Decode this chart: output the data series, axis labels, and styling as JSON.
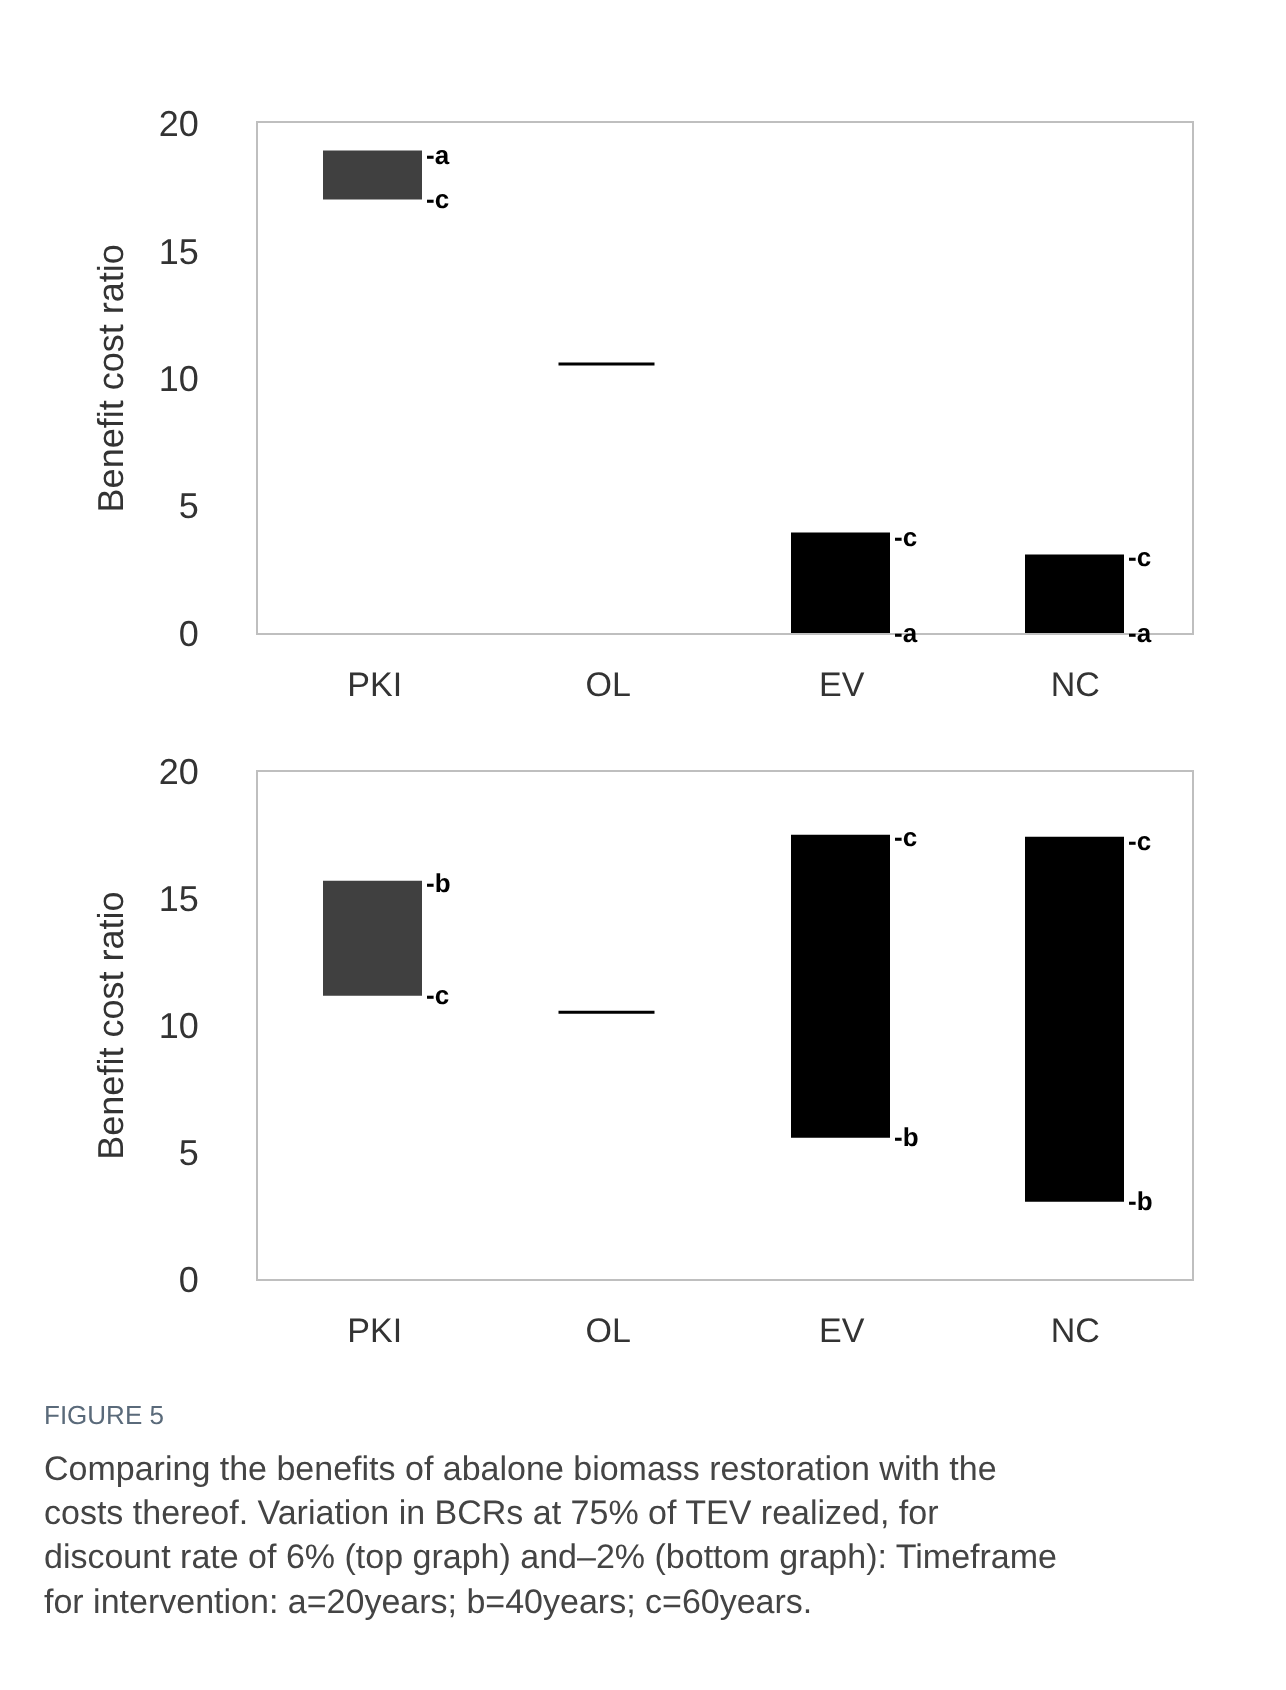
{
  "chart_data": [
    {
      "type": "bar",
      "ylabel": "Benefit cost ratio",
      "categories": [
        "PKI",
        "OL",
        "EV",
        "NC"
      ],
      "values": [
        1.8,
        0,
        3.8,
        3.0
      ],
      "base": [
        17.0,
        10.5,
        0,
        0
      ],
      "colors": [
        "#404040",
        "#000000",
        "#000000",
        "#000000"
      ],
      "ylim": [
        0,
        20
      ],
      "yticks": [
        0,
        5,
        10,
        15,
        20
      ],
      "annotations": [
        {
          "text": "-a",
          "x": "PKI",
          "y": 18.8
        },
        {
          "text": "-c",
          "x": "PKI",
          "y": 17.0
        },
        {
          "text": "-c",
          "x": "EV",
          "y": 3.8
        },
        {
          "text": "-a",
          "x": "EV",
          "y": 0
        },
        {
          "text": "-c",
          "x": "NC",
          "y": 3.0
        },
        {
          "text": "-a",
          "x": "NC",
          "y": 0
        }
      ]
    },
    {
      "type": "bar",
      "ylabel": "Benefit cost ratio",
      "categories": [
        "PKI",
        "OL",
        "EV",
        "NC"
      ],
      "values": [
        4.4,
        0,
        11.8,
        14.2
      ],
      "base": [
        11.2,
        10.5,
        5.6,
        3.1
      ],
      "colors": [
        "#404040",
        "#000000",
        "#000000",
        "#000000"
      ],
      "ylim": [
        0,
        20
      ],
      "yticks": [
        0,
        5,
        10,
        15,
        20
      ],
      "annotations": [
        {
          "text": "-b",
          "x": "PKI",
          "y": 15.6
        },
        {
          "text": "-c",
          "x": "PKI",
          "y": 11.2
        },
        {
          "text": "-c",
          "x": "EV",
          "y": 17.4
        },
        {
          "text": "-b",
          "x": "EV",
          "y": 5.6
        },
        {
          "text": "-c",
          "x": "NC",
          "y": 17.3
        },
        {
          "text": "-b",
          "x": "NC",
          "y": 3.1
        },
        "FIGURE 5",
        "Comparing the benefits of abalone biomass restoration with the costs thereof. Variation in BCRs at 75% of TEV realized, for discount rate of 6% (top graph) and–2% (bottom graph): Timeframe for intervention: a=20years; b=40years; c=60years."
      ]
    }
  ]
}
